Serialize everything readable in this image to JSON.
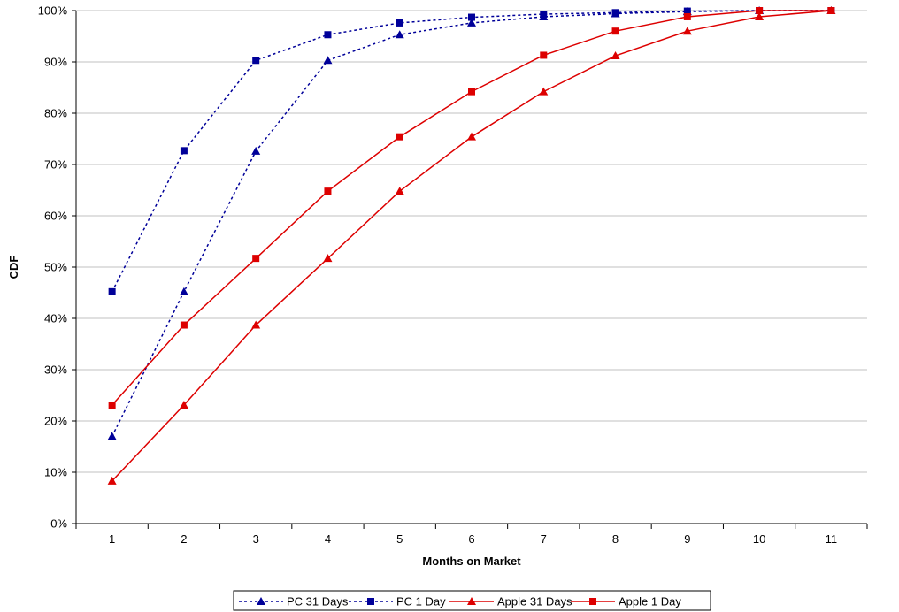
{
  "chart_data": {
    "type": "line",
    "title": "",
    "xlabel": "Months on Market",
    "ylabel": "CDF",
    "x": [
      1,
      2,
      3,
      4,
      5,
      6,
      7,
      8,
      9,
      10,
      11
    ],
    "x_tick_labels": [
      "1",
      "2",
      "3",
      "4",
      "5",
      "6",
      "7",
      "8",
      "9",
      "10",
      "11"
    ],
    "y_tick_labels": [
      "0%",
      "10%",
      "20%",
      "30%",
      "40%",
      "50%",
      "60%",
      "70%",
      "80%",
      "90%",
      "100%"
    ],
    "ylim": [
      0,
      100
    ],
    "y_unit": "percent",
    "grid": "horizontal",
    "legend_position": "bottom",
    "series": [
      {
        "name": "PC 31 Days",
        "color": "#000099",
        "line_style": "dotted",
        "marker": "triangle",
        "values": [
          17,
          45.2,
          72.6,
          90.3,
          95.3,
          97.6,
          98.8,
          99.4,
          99.8,
          100,
          100
        ]
      },
      {
        "name": "PC 1 Day",
        "color": "#000099",
        "line_style": "dotted",
        "marker": "square",
        "values": [
          45.2,
          72.7,
          90.3,
          95.3,
          97.6,
          98.7,
          99.3,
          99.6,
          99.9,
          100,
          100
        ]
      },
      {
        "name": "Apple 31 Days",
        "color": "#dd0000",
        "line_style": "solid",
        "marker": "triangle",
        "values": [
          8.3,
          23.1,
          38.7,
          51.7,
          64.8,
          75.4,
          84.2,
          91.2,
          96,
          98.8,
          100
        ]
      },
      {
        "name": "Apple 1 Day",
        "color": "#dd0000",
        "line_style": "solid",
        "marker": "square",
        "values": [
          23.1,
          38.7,
          51.7,
          64.8,
          75.4,
          84.2,
          91.3,
          96,
          98.8,
          100,
          100
        ]
      }
    ]
  }
}
